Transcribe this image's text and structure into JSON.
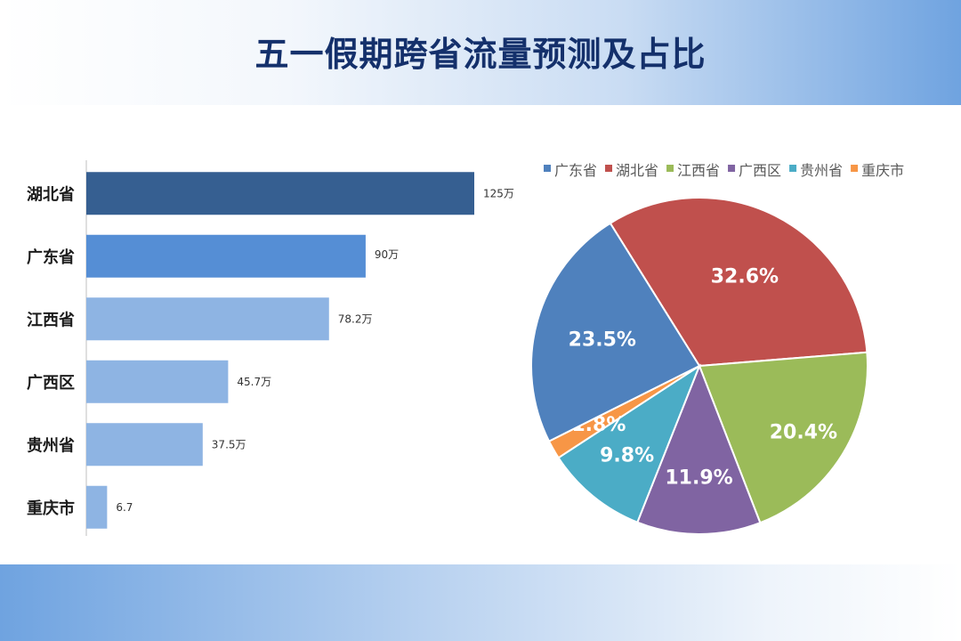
{
  "title": "五一假期跨省流量预测及占比",
  "chart_data": [
    {
      "type": "bar",
      "orientation": "horizontal",
      "categories": [
        "湖北省",
        "广东省",
        "江西省",
        "广西区",
        "贵州省",
        "重庆市"
      ],
      "values": [
        125,
        90,
        78.2,
        45.7,
        37.5,
        6.7
      ],
      "value_labels": [
        "125万",
        "90万",
        "78.2万",
        "45.7万",
        "37.5万",
        "6.7"
      ],
      "colors": [
        "#365f91",
        "#558ed5",
        "#8eb4e3",
        "#8eb4e3",
        "#8eb4e3",
        "#8eb4e3"
      ],
      "xlim": [
        0,
        125
      ],
      "grid": false
    },
    {
      "type": "pie",
      "categories": [
        "广东省",
        "湖北省",
        "江西省",
        "广西区",
        "贵州省",
        "重庆市"
      ],
      "values": [
        23.5,
        32.6,
        20.4,
        11.9,
        9.8,
        1.8
      ],
      "value_labels": [
        "23.5%",
        "32.6%",
        "20.4%",
        "11.9%",
        "9.8%",
        "1.8%"
      ],
      "colors": [
        "#4f81bd",
        "#c0504d",
        "#9bbb59",
        "#8064a2",
        "#4bacc6",
        "#f79646"
      ],
      "legend_position": "top"
    }
  ]
}
